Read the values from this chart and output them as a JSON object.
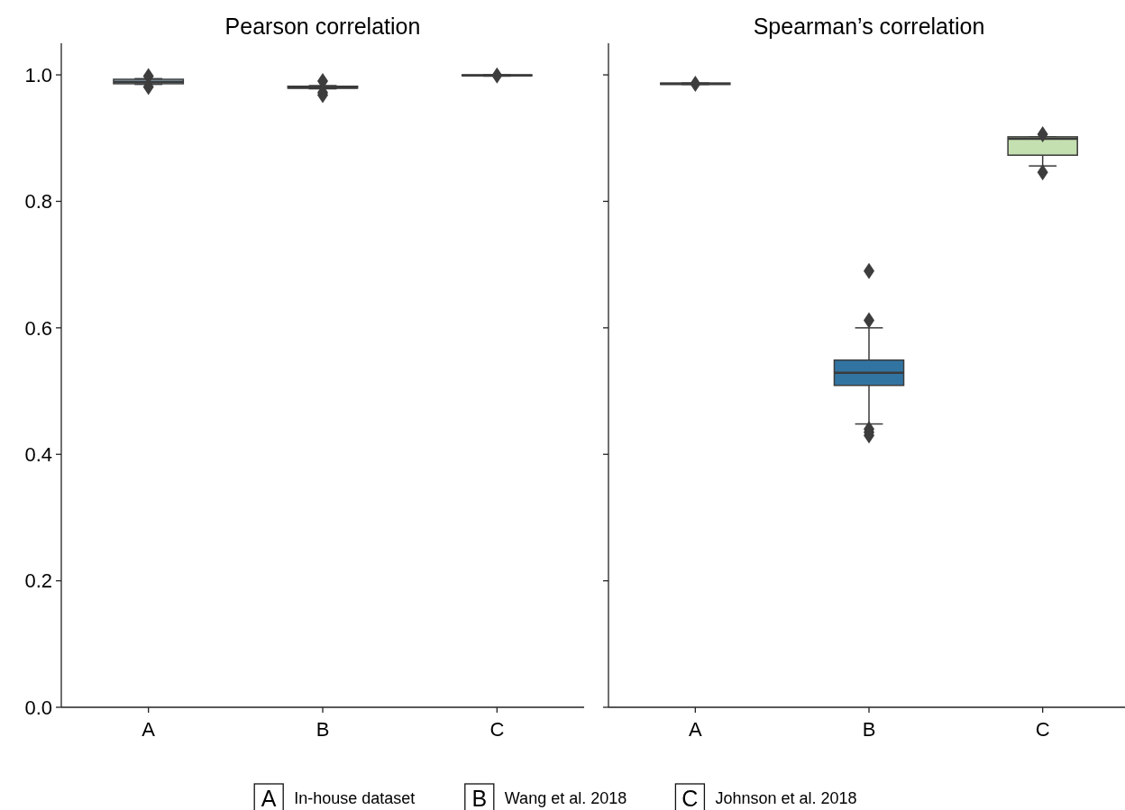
{
  "chart_data": [
    {
      "type": "box",
      "title": "Pearson correlation",
      "categories": [
        "A",
        "B",
        "C"
      ],
      "colors": [
        "#a9c6dc",
        "#2e4a62",
        "#555555"
      ],
      "ylim": [
        0,
        1.05
      ],
      "yticks": [
        {
          "value": 0,
          "label": "0.0"
        },
        0.2,
        0.4,
        0.6,
        0.8,
        {
          "value": 1,
          "label": "1.0"
        }
      ],
      "grid": false,
      "boxes": [
        {
          "low": 0.985,
          "q1": 0.986,
          "median": 0.989,
          "q3": 0.993,
          "high": 0.994,
          "outliers": [
            0.998,
            0.981
          ]
        },
        {
          "low": 0.978,
          "q1": 0.979,
          "median": 0.98,
          "q3": 0.982,
          "high": 0.983,
          "outliers": [
            0.99,
            0.972,
            0.968
          ]
        },
        {
          "low": 0.998,
          "q1": 0.999,
          "median": 0.999,
          "q3": 1.0,
          "high": 1.0,
          "outliers": [
            0.999
          ]
        }
      ]
    },
    {
      "type": "box",
      "title": "Spearman’s correlation",
      "categories": [
        "A",
        "B",
        "C"
      ],
      "colors": [
        "#555555",
        "#3274a1",
        "#c5e0b0"
      ],
      "ylim": [
        0,
        1.05
      ],
      "yticks": [
        {
          "value": 0,
          "label": null
        },
        {
          "value": 0.2,
          "label": null
        },
        {
          "value": 0.4,
          "label": null
        },
        {
          "value": 0.6,
          "label": null
        },
        {
          "value": 0.8,
          "label": null
        },
        {
          "value": 1,
          "label": null
        }
      ],
      "tick_labels": "x",
      "grid": false,
      "boxes": [
        {
          "low": 0.985,
          "q1": 0.985,
          "median": 0.986,
          "q3": 0.987,
          "high": 0.987,
          "outliers": [
            0.986
          ]
        },
        {
          "low": 0.448,
          "q1": 0.509,
          "median": 0.529,
          "q3": 0.549,
          "high": 0.6,
          "outliers": [
            0.69,
            0.612,
            0.44,
            0.435,
            0.43
          ]
        },
        {
          "low": 0.856,
          "q1": 0.873,
          "median": 0.899,
          "q3": 0.902,
          "high": 0.902,
          "outliers": [
            0.906,
            0.846
          ]
        }
      ],
      "annotations": [
        "In-house dataset",
        "Wang et al. 2018",
        "Johnson et al. 2018"
      ]
    }
  ]
}
